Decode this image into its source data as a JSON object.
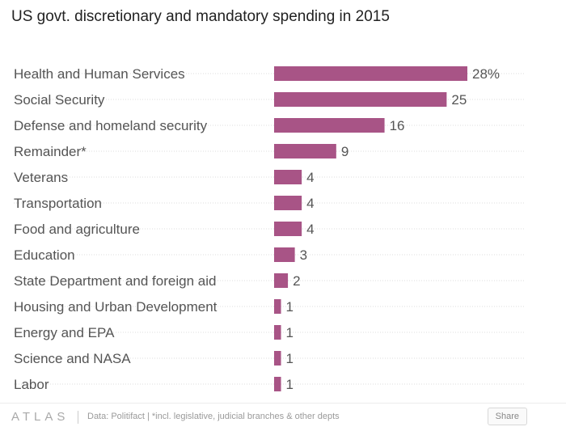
{
  "title": "US govt. discretionary and mandatory spending in 2015",
  "footer": {
    "logo": "ATLAS",
    "note": "Data: Politifact | *incl. legislative, judicial branches & other depts",
    "share_label": "Share"
  },
  "colors": {
    "bar": "#a85486",
    "grid": "#dcdcdc",
    "label": "#555555"
  },
  "chart_data": {
    "type": "bar",
    "orientation": "horizontal",
    "categories": [
      "Health and Human Services",
      "Social Security",
      "Defense and homeland security",
      "Remainder*",
      "Veterans",
      "Transportation",
      "Food and agriculture",
      "Education",
      "State Department and foreign aid",
      "Housing and Urban Development",
      "Energy and EPA",
      "Science and NASA",
      "Labor"
    ],
    "values": [
      28,
      25,
      16,
      9,
      4,
      4,
      4,
      3,
      2,
      1,
      1,
      1,
      1
    ],
    "value_labels": [
      "28%",
      "25",
      "16",
      "9",
      "4",
      "4",
      "4",
      "3",
      "2",
      "1",
      "1",
      "1",
      "1"
    ],
    "xlim": [
      0,
      28
    ],
    "grid": false
  }
}
